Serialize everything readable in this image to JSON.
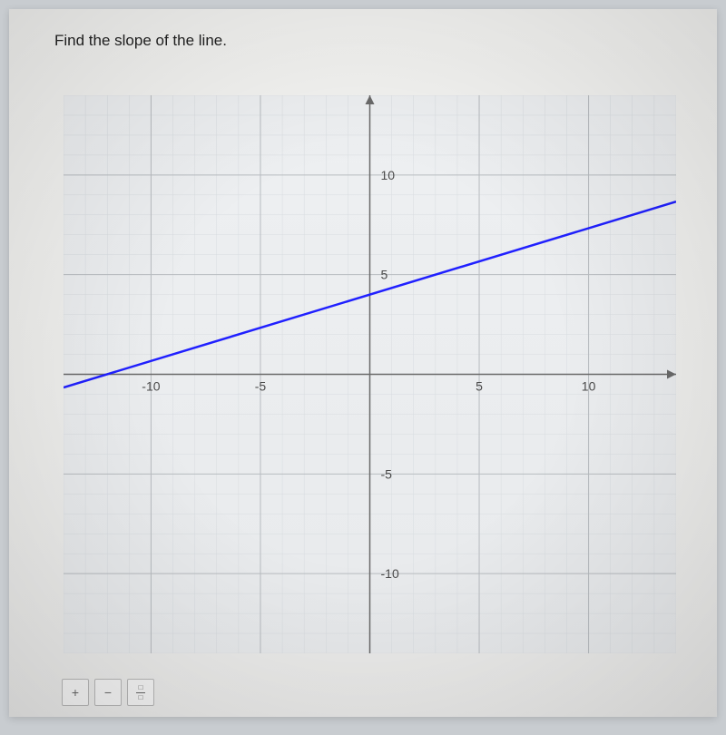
{
  "question": "Find the slope of the line.",
  "chart": {
    "type": "line",
    "xlim": [
      -14,
      14
    ],
    "ylim": [
      -14,
      14
    ],
    "xticks": [
      -10,
      -5,
      5,
      10
    ],
    "yticks": [
      -10,
      -5,
      5,
      10
    ],
    "grid_minor_step": 1,
    "grid_major_step": 5,
    "background_color": "#eef0f2",
    "grid_minor_color": "#d8dce0",
    "grid_major_color": "#b8bcc0",
    "axis_color": "#6a6a6a",
    "label_color": "#4a4a4a",
    "label_fontsize": 14,
    "line": {
      "x1": -14,
      "y1": -0.67,
      "x2": 14,
      "y2": 8.67,
      "slope": 0.333,
      "intercept": 4,
      "color": "#2020ff",
      "width": 2.5
    }
  },
  "toolbar": {
    "plus": "+",
    "minus": "−",
    "frac_top": "□",
    "frac_bot": "□"
  }
}
